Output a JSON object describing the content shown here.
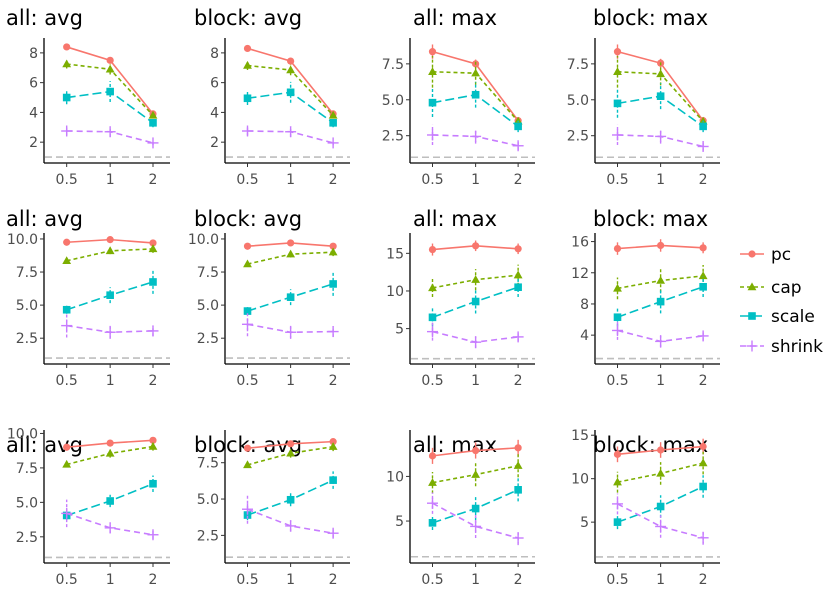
{
  "colors": {
    "pc": "#F8766D",
    "cap": "#7CAE00",
    "scale": "#00BFC4",
    "shrink": "#C77CFF",
    "ref": "#BEBEBE"
  },
  "legend": {
    "entries": [
      "pc",
      "cap",
      "scale",
      "shrink"
    ]
  },
  "chart_data": [
    {
      "type": "line",
      "title": "all: avg",
      "categories": [
        "0.5",
        "1",
        "2"
      ],
      "ylim": [
        0.6,
        9.0
      ],
      "yticks": [
        2,
        4,
        6,
        8
      ],
      "ytick_labels": [
        "2",
        "4",
        "6",
        "8"
      ],
      "reference_line": 1,
      "series": [
        {
          "name": "pc",
          "values": [
            8.4,
            7.5,
            3.9
          ],
          "errors": [
            0.0,
            0.15,
            0.1
          ]
        },
        {
          "name": "cap",
          "values": [
            7.25,
            6.9,
            3.8
          ],
          "errors": [
            0.3,
            0.35,
            0.1
          ]
        },
        {
          "name": "scale",
          "values": [
            5.0,
            5.4,
            3.3
          ],
          "errors": [
            0.45,
            0.7,
            0.3
          ]
        },
        {
          "name": "shrink",
          "values": [
            2.75,
            2.7,
            1.95
          ],
          "errors": [
            0.3,
            0.35,
            0.15
          ]
        }
      ]
    },
    {
      "type": "line",
      "title": "block: avg",
      "categories": [
        "0.5",
        "1",
        "2"
      ],
      "ylim": [
        0.6,
        9.0
      ],
      "yticks": [
        2,
        4,
        6,
        8
      ],
      "ytick_labels": [
        "2",
        "4",
        "6",
        "8"
      ],
      "reference_line": 1,
      "series": [
        {
          "name": "pc",
          "values": [
            8.3,
            7.45,
            3.9
          ],
          "errors": [
            0.0,
            0.15,
            0.1
          ]
        },
        {
          "name": "cap",
          "values": [
            7.15,
            6.85,
            3.8
          ],
          "errors": [
            0.3,
            0.35,
            0.1
          ]
        },
        {
          "name": "scale",
          "values": [
            4.95,
            5.35,
            3.3
          ],
          "errors": [
            0.45,
            0.7,
            0.3
          ]
        },
        {
          "name": "shrink",
          "values": [
            2.75,
            2.7,
            1.95
          ],
          "errors": [
            0.3,
            0.35,
            0.15
          ]
        }
      ]
    },
    {
      "type": "line",
      "title": "all: max",
      "categories": [
        "0.5",
        "1",
        "2"
      ],
      "ylim": [
        0.6,
        9.3
      ],
      "yticks": [
        2.5,
        5.0,
        7.5
      ],
      "ytick_labels": [
        "2.5",
        "5.0",
        "7.5"
      ],
      "reference_line": 1,
      "series": [
        {
          "name": "pc",
          "values": [
            8.35,
            7.5,
            3.55
          ],
          "errors": [
            0.5,
            0.3,
            0.15
          ]
        },
        {
          "name": "cap",
          "values": [
            6.95,
            6.85,
            3.5
          ],
          "errors": [
            1.1,
            0.8,
            0.2
          ]
        },
        {
          "name": "scale",
          "values": [
            4.8,
            5.35,
            3.15
          ],
          "errors": [
            1.0,
            0.9,
            0.4
          ]
        },
        {
          "name": "shrink",
          "values": [
            2.55,
            2.45,
            1.8
          ],
          "errors": [
            0.7,
            0.5,
            0.3
          ]
        }
      ]
    },
    {
      "type": "line",
      "title": "block: max",
      "categories": [
        "0.5",
        "1",
        "2"
      ],
      "ylim": [
        0.6,
        9.3
      ],
      "yticks": [
        2.5,
        5.0,
        7.5
      ],
      "ytick_labels": [
        "2.5",
        "5.0",
        "7.5"
      ],
      "reference_line": 1,
      "series": [
        {
          "name": "pc",
          "values": [
            8.35,
            7.55,
            3.55
          ],
          "errors": [
            0.5,
            0.3,
            0.15
          ]
        },
        {
          "name": "cap",
          "values": [
            6.95,
            6.8,
            3.5
          ],
          "errors": [
            1.1,
            0.8,
            0.2
          ]
        },
        {
          "name": "scale",
          "values": [
            4.75,
            5.25,
            3.15
          ],
          "errors": [
            1.0,
            0.9,
            0.4
          ]
        },
        {
          "name": "shrink",
          "values": [
            2.55,
            2.45,
            1.75
          ],
          "errors": [
            0.7,
            0.5,
            0.3
          ]
        }
      ]
    },
    {
      "type": "line",
      "title": "all: avg",
      "categories": [
        "0.5",
        "1",
        "2"
      ],
      "ylim": [
        0.55,
        10.45
      ],
      "yticks": [
        2.5,
        5.0,
        7.5,
        10.0
      ],
      "ytick_labels": [
        "2.5",
        "5.0",
        "7.5",
        "10.0"
      ],
      "reference_line": 1,
      "series": [
        {
          "name": "pc",
          "values": [
            9.75,
            9.95,
            9.7
          ],
          "errors": [
            0.1,
            0.1,
            0.1
          ]
        },
        {
          "name": "cap",
          "values": [
            8.35,
            9.1,
            9.25
          ],
          "errors": [
            0.2,
            0.25,
            0.3
          ]
        },
        {
          "name": "scale",
          "values": [
            4.65,
            5.75,
            6.75
          ],
          "errors": [
            0.3,
            0.6,
            0.9
          ]
        },
        {
          "name": "shrink",
          "values": [
            3.45,
            2.95,
            3.05
          ],
          "errors": [
            0.9,
            0.5,
            0.4
          ]
        }
      ]
    },
    {
      "type": "line",
      "title": "block: avg",
      "categories": [
        "0.5",
        "1",
        "2"
      ],
      "ylim": [
        0.55,
        10.45
      ],
      "yticks": [
        2.5,
        5.0,
        7.5,
        10.0
      ],
      "ytick_labels": [
        "2.5",
        "5.0",
        "7.5",
        "10.0"
      ],
      "reference_line": 1,
      "series": [
        {
          "name": "pc",
          "values": [
            9.45,
            9.7,
            9.45
          ],
          "errors": [
            0.1,
            0.1,
            0.1
          ]
        },
        {
          "name": "cap",
          "values": [
            8.1,
            8.85,
            9.0
          ],
          "errors": [
            0.2,
            0.25,
            0.3
          ]
        },
        {
          "name": "scale",
          "values": [
            4.55,
            5.6,
            6.6
          ],
          "errors": [
            0.3,
            0.6,
            0.9
          ]
        },
        {
          "name": "shrink",
          "values": [
            3.55,
            2.95,
            3.0
          ],
          "errors": [
            0.9,
            0.5,
            0.4
          ]
        }
      ]
    },
    {
      "type": "line",
      "title": "all: max",
      "categories": [
        "0.5",
        "1",
        "2"
      ],
      "ylim": [
        0.3,
        17.7
      ],
      "yticks": [
        5,
        10,
        15
      ],
      "ytick_labels": [
        "5",
        "10",
        "15"
      ],
      "reference_line": 1,
      "series": [
        {
          "name": "pc",
          "values": [
            15.5,
            16.0,
            15.6
          ],
          "errors": [
            0.8,
            0.7,
            0.7
          ]
        },
        {
          "name": "cap",
          "values": [
            10.4,
            11.5,
            12.1
          ],
          "errors": [
            1.2,
            1.4,
            1.4
          ]
        },
        {
          "name": "scale",
          "values": [
            6.5,
            8.6,
            10.5
          ],
          "errors": [
            1.2,
            1.6,
            1.3
          ]
        },
        {
          "name": "shrink",
          "values": [
            4.6,
            3.2,
            3.9
          ],
          "errors": [
            1.2,
            0.8,
            0.6
          ]
        }
      ]
    },
    {
      "type": "line",
      "title": "block: max",
      "categories": [
        "0.5",
        "1",
        "2"
      ],
      "ylim": [
        0.3,
        17.1
      ],
      "yticks": [
        4,
        8,
        12,
        16
      ],
      "ytick_labels": [
        "4",
        "8",
        "12",
        "16"
      ],
      "reference_line": 1,
      "series": [
        {
          "name": "pc",
          "values": [
            15.1,
            15.5,
            15.2
          ],
          "errors": [
            0.8,
            0.8,
            0.7
          ]
        },
        {
          "name": "cap",
          "values": [
            10.0,
            11.0,
            11.6
          ],
          "errors": [
            1.4,
            1.5,
            1.4
          ]
        },
        {
          "name": "scale",
          "values": [
            6.3,
            8.3,
            10.2
          ],
          "errors": [
            1.2,
            1.5,
            1.3
          ]
        },
        {
          "name": "shrink",
          "values": [
            4.6,
            3.2,
            3.9
          ],
          "errors": [
            1.2,
            0.8,
            0.6
          ]
        }
      ]
    },
    {
      "type": "line",
      "title": "all: avg",
      "categories": [
        "0.5",
        "1",
        "2"
      ],
      "ylim": [
        0.6,
        10.25
      ],
      "yticks": [
        2.5,
        5.0,
        7.5,
        10.0
      ],
      "ytick_labels": [
        "2.5",
        "5.0",
        "7.5",
        "10.0"
      ],
      "reference_line": 1,
      "series": [
        {
          "name": "pc",
          "values": [
            9.0,
            9.3,
            9.5
          ],
          "errors": [
            0.1,
            0.1,
            0.15
          ]
        },
        {
          "name": "cap",
          "values": [
            7.75,
            8.55,
            9.05
          ],
          "errors": [
            0.2,
            0.3,
            0.3
          ]
        },
        {
          "name": "scale",
          "values": [
            4.05,
            5.1,
            6.35
          ],
          "errors": [
            0.35,
            0.45,
            0.6
          ]
        },
        {
          "name": "shrink",
          "values": [
            4.2,
            3.15,
            2.65
          ],
          "errors": [
            1.0,
            0.4,
            0.3
          ]
        }
      ]
    },
    {
      "type": "line",
      "title": "block: avg",
      "categories": [
        "0.5",
        "1",
        "2"
      ],
      "ylim": [
        0.6,
        9.75
      ],
      "yticks": [
        2.5,
        5.0,
        7.5
      ],
      "ytick_labels": [
        "2.5",
        "5.0",
        "7.5"
      ],
      "reference_line": 1,
      "series": [
        {
          "name": "pc",
          "values": [
            8.5,
            8.8,
            8.95
          ],
          "errors": [
            0.1,
            0.1,
            0.15
          ]
        },
        {
          "name": "cap",
          "values": [
            7.35,
            8.15,
            8.6
          ],
          "errors": [
            0.2,
            0.3,
            0.3
          ]
        },
        {
          "name": "scale",
          "values": [
            3.9,
            4.95,
            6.3
          ],
          "errors": [
            0.35,
            0.45,
            0.6
          ]
        },
        {
          "name": "shrink",
          "values": [
            4.3,
            3.15,
            2.65
          ],
          "errors": [
            1.0,
            0.4,
            0.3
          ]
        }
      ]
    },
    {
      "type": "line",
      "title": "all: max",
      "categories": [
        "0.5",
        "1",
        "2"
      ],
      "ylim": [
        0.3,
        15.2
      ],
      "yticks": [
        5,
        10
      ],
      "ytick_labels": [
        "5",
        "10"
      ],
      "reference_line": 1,
      "series": [
        {
          "name": "pc",
          "values": [
            12.3,
            12.9,
            13.2
          ],
          "errors": [
            0.9,
            0.9,
            0.9
          ]
        },
        {
          "name": "cap",
          "values": [
            9.3,
            10.2,
            11.2
          ],
          "errors": [
            1.2,
            1.3,
            1.3
          ]
        },
        {
          "name": "scale",
          "values": [
            4.8,
            6.4,
            8.5
          ],
          "errors": [
            0.8,
            1.3,
            1.3
          ]
        },
        {
          "name": "shrink",
          "values": [
            7.0,
            4.4,
            3.1
          ],
          "errors": [
            1.2,
            1.3,
            0.8
          ]
        }
      ]
    },
    {
      "type": "line",
      "title": "block: max",
      "categories": [
        "0.5",
        "1",
        "2"
      ],
      "ylim": [
        0.3,
        15.6
      ],
      "yticks": [
        5,
        10,
        15
      ],
      "ytick_labels": [
        "5",
        "10",
        "15"
      ],
      "reference_line": 1,
      "series": [
        {
          "name": "pc",
          "values": [
            12.8,
            13.3,
            13.7
          ],
          "errors": [
            0.9,
            0.9,
            0.9
          ]
        },
        {
          "name": "cap",
          "values": [
            9.6,
            10.6,
            11.8
          ],
          "errors": [
            1.2,
            1.3,
            1.3
          ]
        },
        {
          "name": "scale",
          "values": [
            5.0,
            6.8,
            9.1
          ],
          "errors": [
            0.8,
            1.3,
            1.3
          ]
        },
        {
          "name": "shrink",
          "values": [
            7.1,
            4.5,
            3.2
          ],
          "errors": [
            1.2,
            1.3,
            0.8
          ]
        }
      ]
    }
  ]
}
